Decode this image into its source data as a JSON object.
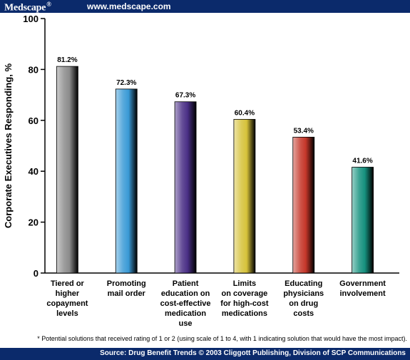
{
  "header": {
    "brand": "Medscape",
    "brand_mark": "®",
    "url": "www.medscape.com"
  },
  "footer": {
    "footnote": "* Potential solutions that received rating of 1 or 2 (using scale of 1 to 4, with 1 indicating solution that would have the most impact).",
    "source": "Source: Drug Benefit Trends © 2003 Cliggott Publishing, Division of SCP Communications"
  },
  "chart_data": {
    "type": "bar",
    "title": "",
    "xlabel": "",
    "ylabel": "Corporate Executives Responding, %",
    "ylim": [
      0,
      100
    ],
    "yticks": [
      0,
      20,
      40,
      60,
      80,
      100
    ],
    "grid": false,
    "categories": [
      [
        "Tiered or",
        "higher",
        "copayment",
        "levels"
      ],
      [
        "Promoting",
        "mail order"
      ],
      [
        "Patient",
        "education on",
        "cost-effective",
        "medication",
        "use"
      ],
      [
        "Limits",
        "on coverage",
        "for high-cost",
        "medications"
      ],
      [
        "Educating",
        "physicians",
        "on drug",
        "costs"
      ],
      [
        "Government",
        "involvement"
      ]
    ],
    "values": [
      81.2,
      72.3,
      67.3,
      60.4,
      53.4,
      41.6
    ],
    "value_labels": [
      "81.2%",
      "72.3%",
      "67.3%",
      "60.4%",
      "53.4%",
      "41.6%"
    ],
    "colors": [
      "#8c8c8c",
      "#3a9ad6",
      "#4a2f86",
      "#d6c23a",
      "#c5372a",
      "#16917f"
    ]
  }
}
